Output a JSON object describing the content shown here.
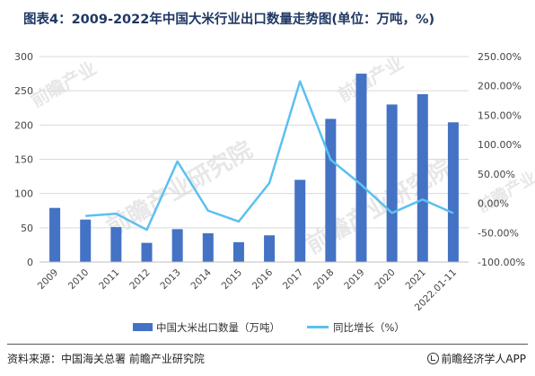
{
  "title": "图表4：2009-2022年中国大米行业出口数量走势图(单位：万吨，%)",
  "source_text": "资料来源：中国海关总署 前瞻产业研究院",
  "brand_text": "前瞻经济学人APP",
  "watermark_text": "前瞻产业研究院",
  "watermark_sub": "前瞻产业",
  "colors": {
    "bar": "#4472c4",
    "line": "#5bc0f0",
    "title": "#1f3864",
    "axis": "#c0c0c0"
  },
  "chart_data": {
    "type": "bar",
    "title": "图表4：2009-2022年中国大米行业出口数量走势图(单位：万吨，%)",
    "categories": [
      "2009",
      "2010",
      "2011",
      "2012",
      "2013",
      "2014",
      "2015",
      "2016",
      "2017",
      "2018",
      "2019",
      "2020",
      "2021",
      "2022.01-11"
    ],
    "series": [
      {
        "name": "中国大米出口数量（万吨）",
        "type": "bar",
        "axis": "left",
        "values": [
          79,
          62,
          51,
          28,
          48,
          42,
          29,
          39,
          120,
          209,
          275,
          230,
          245,
          204
        ]
      },
      {
        "name": "同比增长（%）",
        "type": "line",
        "axis": "right",
        "values": [
          null,
          -21.5,
          -17.7,
          -45.1,
          71.4,
          -12.5,
          -31.0,
          34.5,
          207.7,
          74.2,
          31.6,
          -16.4,
          6.5,
          -16.7
        ]
      }
    ],
    "y_left": {
      "min": 0,
      "max": 300,
      "ticks": [
        0,
        50,
        100,
        150,
        200,
        250,
        300
      ]
    },
    "y_right": {
      "min": -100,
      "max": 250,
      "ticks": [
        -100,
        -50,
        0,
        50,
        100,
        150,
        200,
        250
      ],
      "tick_labels": [
        "-100.00%",
        "-50.00%",
        "0.00%",
        "50.00%",
        "100.00%",
        "150.00%",
        "200.00%",
        "250.00%"
      ]
    },
    "y_left_tick_labels": [
      "0",
      "50",
      "100",
      "150",
      "200",
      "250",
      "300"
    ],
    "grid": "horizontal",
    "legend": "bottom"
  }
}
